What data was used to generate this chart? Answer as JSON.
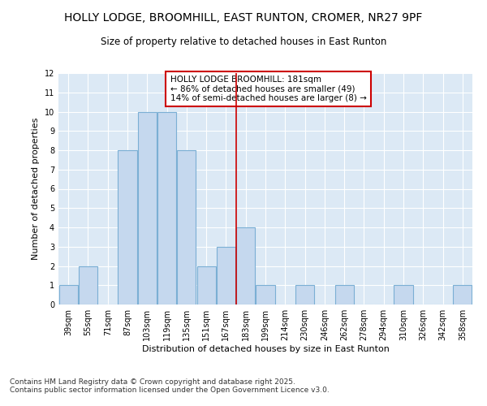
{
  "title": "HOLLY LODGE, BROOMHILL, EAST RUNTON, CROMER, NR27 9PF",
  "subtitle": "Size of property relative to detached houses in East Runton",
  "xlabel": "Distribution of detached houses by size in East Runton",
  "ylabel": "Number of detached properties",
  "categories": [
    "39sqm",
    "55sqm",
    "71sqm",
    "87sqm",
    "103sqm",
    "119sqm",
    "135sqm",
    "151sqm",
    "167sqm",
    "183sqm",
    "199sqm",
    "214sqm",
    "230sqm",
    "246sqm",
    "262sqm",
    "278sqm",
    "294sqm",
    "310sqm",
    "326sqm",
    "342sqm",
    "358sqm"
  ],
  "values": [
    1,
    2,
    0,
    8,
    10,
    10,
    8,
    2,
    3,
    4,
    1,
    0,
    1,
    0,
    1,
    0,
    0,
    1,
    0,
    0,
    1
  ],
  "bar_color": "#c5d8ee",
  "bar_edge_color": "#7bafd4",
  "ylim": [
    0,
    12
  ],
  "yticks": [
    0,
    1,
    2,
    3,
    4,
    5,
    6,
    7,
    8,
    9,
    10,
    11,
    12
  ],
  "red_line_color": "#cc0000",
  "annotation_text": "HOLLY LODGE BROOMHILL: 181sqm\n← 86% of detached houses are smaller (49)\n14% of semi-detached houses are larger (8) →",
  "annotation_box_color": "#ffffff",
  "annotation_box_edge": "#cc0000",
  "bg_color": "#dce9f5",
  "grid_color": "#ffffff",
  "footer_text": "Contains HM Land Registry data © Crown copyright and database right 2025.\nContains public sector information licensed under the Open Government Licence v3.0.",
  "title_fontsize": 10,
  "subtitle_fontsize": 8.5,
  "axis_label_fontsize": 8,
  "tick_fontsize": 7,
  "annotation_fontsize": 7.5,
  "footer_fontsize": 6.5
}
